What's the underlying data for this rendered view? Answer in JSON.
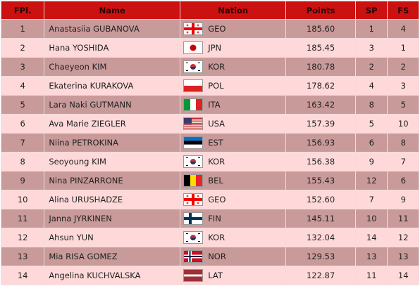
{
  "table": {
    "headers": [
      "FPl.",
      "Name",
      "Nation",
      "Points",
      "SP",
      "FS"
    ],
    "rows": [
      [
        1,
        "Anastasiia GUBANOVA",
        "GEO",
        "185.60",
        1,
        4
      ],
      [
        2,
        "Hana YOSHIDA",
        "JPN",
        "185.45",
        3,
        1
      ],
      [
        3,
        "Chaeyeon KIM",
        "KOR",
        "180.78",
        2,
        2
      ],
      [
        4,
        "Ekaterina KURAKOVA",
        "POL",
        "178.62",
        4,
        3
      ],
      [
        5,
        "Lara Naki GUTMANN",
        "ITA",
        "163.42",
        8,
        5
      ],
      [
        6,
        "Ava Marie ZIEGLER",
        "USA",
        "157.39",
        5,
        10
      ],
      [
        7,
        "Niina PETROKINA",
        "EST",
        "156.93",
        6,
        8
      ],
      [
        8,
        "Seoyoung KIM",
        "KOR",
        "156.38",
        9,
        7
      ],
      [
        9,
        "Nina PINZARRONE",
        "BEL",
        "155.43",
        12,
        6
      ],
      [
        10,
        "Alina URUSHADZE",
        "GEO",
        "152.60",
        7,
        9
      ],
      [
        11,
        "Janna JYRKINEN",
        "FIN",
        "145.11",
        10,
        11
      ],
      [
        12,
        "Ahsun YUN",
        "KOR",
        "132.04",
        14,
        12
      ],
      [
        13,
        "Mia RISA GOMEZ",
        "NOR",
        "129.53",
        13,
        13
      ],
      [
        14,
        "Angelina KUCHVALSKA",
        "LAT",
        "122.87",
        11,
        14
      ]
    ]
  }
}
